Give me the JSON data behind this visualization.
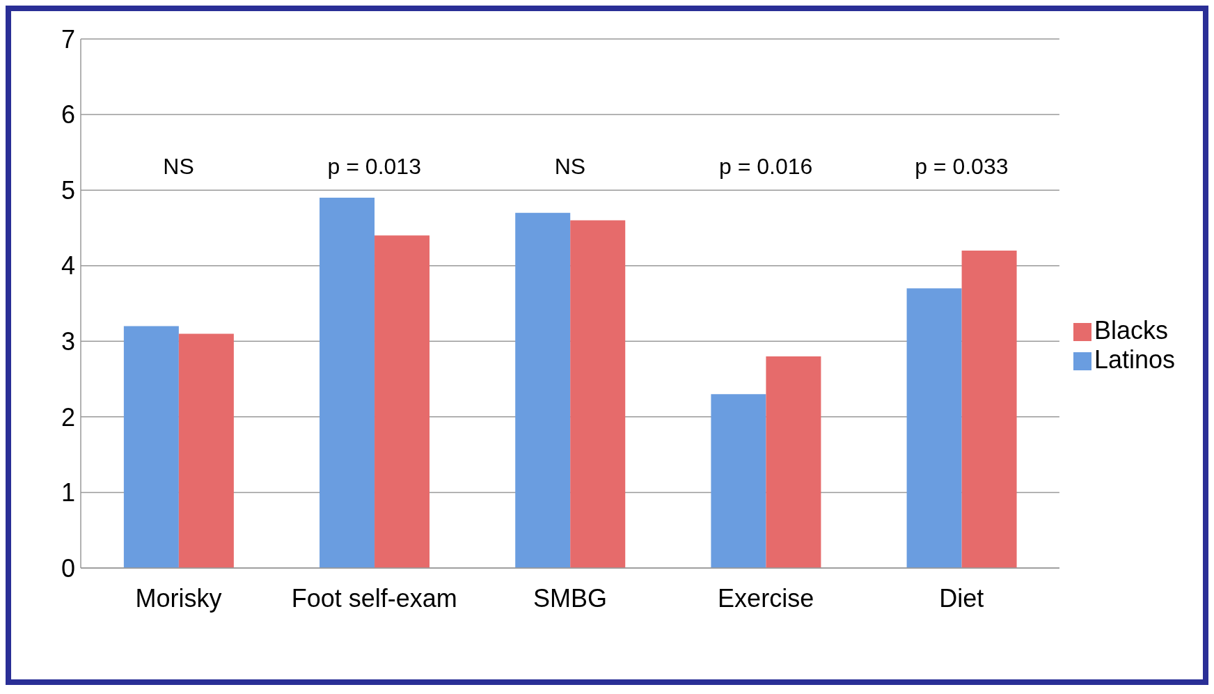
{
  "chart_data": {
    "type": "bar",
    "categories": [
      "Morisky",
      "Foot self-exam",
      "SMBG",
      "Exercise",
      "Diet"
    ],
    "series": [
      {
        "name": "Latinos",
        "color": "#6a9de0",
        "values": [
          3.2,
          4.9,
          4.7,
          2.3,
          3.7
        ]
      },
      {
        "name": "Blacks",
        "color": "#e66b6b",
        "values": [
          3.1,
          4.4,
          4.6,
          2.8,
          4.2
        ]
      }
    ],
    "ylim": [
      0,
      7
    ],
    "yticks": [
      0,
      1,
      2,
      3,
      4,
      5,
      6,
      7
    ],
    "grid": "y",
    "legend": "right",
    "annotations": [
      "NS",
      "p = 0.013",
      "NS",
      "p = 0.016",
      "p = 0.033"
    ]
  }
}
